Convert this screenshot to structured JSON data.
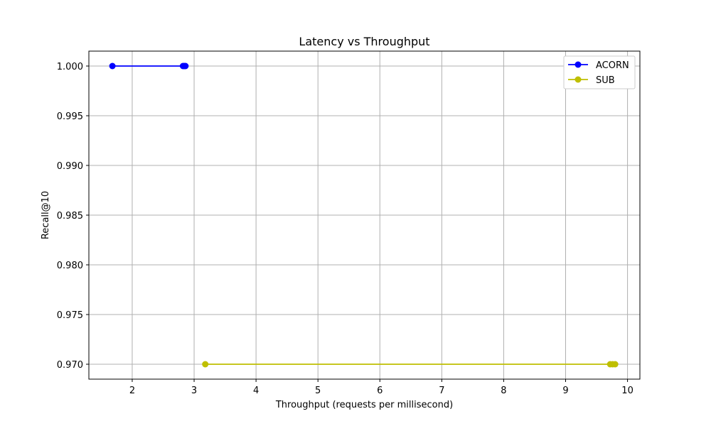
{
  "chart_data": {
    "type": "line",
    "title": "Latency vs Throughput",
    "xlabel": "Throughput (requests per millisecond)",
    "ylabel": "Recall@10",
    "xlim": [
      1.3,
      10.2
    ],
    "ylim": [
      0.9685,
      1.0015
    ],
    "xticks": [
      2,
      3,
      4,
      5,
      6,
      7,
      8,
      9,
      10
    ],
    "yticks": [
      0.97,
      0.975,
      0.98,
      0.985,
      0.99,
      0.995,
      1.0
    ],
    "ytick_labels": [
      "0.970",
      "0.975",
      "0.980",
      "0.985",
      "0.990",
      "0.995",
      "1.000"
    ],
    "grid": true,
    "legend_position": "upper-right",
    "series": [
      {
        "name": "ACORN",
        "color": "#0000ff",
        "x": [
          1.68,
          2.82,
          2.84,
          2.86
        ],
        "y": [
          1.0,
          1.0,
          1.0,
          1.0
        ]
      },
      {
        "name": "SUB",
        "color": "#bfbf00",
        "x": [
          3.18,
          9.72,
          9.76,
          9.8
        ],
        "y": [
          0.97,
          0.97,
          0.97,
          0.97
        ]
      }
    ]
  }
}
